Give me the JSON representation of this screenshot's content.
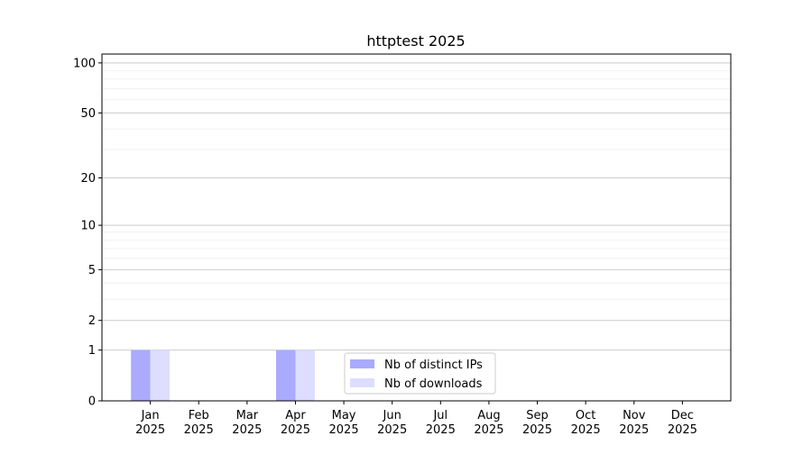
{
  "chart_data": {
    "type": "bar",
    "title": "httptest 2025",
    "categories": [
      "Jan\n2025",
      "Feb\n2025",
      "Mar\n2025",
      "Apr\n2025",
      "May\n2025",
      "Jun\n2025",
      "Jul\n2025",
      "Aug\n2025",
      "Sep\n2025",
      "Oct\n2025",
      "Nov\n2025",
      "Dec\n2025"
    ],
    "series": [
      {
        "name": "Nb of distinct IPs",
        "color": "#aaaaff",
        "values": [
          1,
          0,
          0,
          1,
          0,
          0,
          0,
          0,
          0,
          0,
          0,
          0
        ]
      },
      {
        "name": "Nb of downloads",
        "color": "#ddddff",
        "values": [
          1,
          0,
          0,
          1,
          0,
          0,
          0,
          0,
          0,
          0,
          0,
          0
        ]
      }
    ],
    "yscale": "log1p",
    "ylim": [
      0,
      113
    ],
    "yticks": [
      0,
      1,
      2,
      5,
      10,
      20,
      50,
      100
    ],
    "minor_yticks": [
      3,
      4,
      6,
      7,
      8,
      9,
      30,
      40,
      60,
      70,
      80,
      90
    ],
    "grid": true,
    "legend": "lower center"
  }
}
